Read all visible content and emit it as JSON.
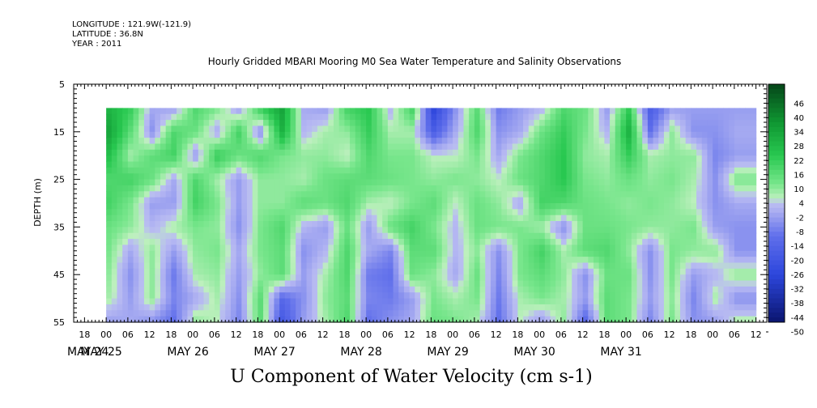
{
  "header": {
    "longitude": "LONGITUDE : 121.9W(-121.9)",
    "latitude": "LATITUDE : 36.8N",
    "year": "YEAR : 2011",
    "title": "Hourly Gridded MBARI Mooring M0 Sea Water Temperature and Salinity Observations"
  },
  "footer": {
    "variable_title": "U Component of Water Velocity (cm s-1)"
  },
  "colors": {
    "strong_positive": "#0b8a2a",
    "positive": "#4bd970",
    "weak_positive": "#a7f0b4",
    "weak_negative": "#b7b9f2",
    "negative": "#6a74e6",
    "strong_negative": "#0a1f8a"
  },
  "chart_data": {
    "type": "heatmap",
    "title": "Hourly Gridded MBARI Mooring M0 Sea Water Temperature and Salinity Observations",
    "xlabel": "",
    "ylabel": "DEPTH (m)",
    "value_label": "U Component of Water Velocity (cm s-1)",
    "y_range": [
      5,
      55
    ],
    "y_ticks": [
      5,
      15,
      25,
      35,
      45,
      55
    ],
    "x_range_hours": [
      -9,
      183
    ],
    "x_hour_labels": [
      "18",
      "00",
      "06",
      "12",
      "18",
      "00",
      "06",
      "12",
      "18",
      "00",
      "06",
      "12",
      "18",
      "00",
      "06",
      "12",
      "18",
      "00",
      "06",
      "12",
      "18",
      "00",
      "06",
      "12",
      "18",
      "00",
      "06",
      "12",
      "18",
      "00",
      "06",
      "12"
    ],
    "x_date_labels": [
      "MAY 24",
      "MAY 25",
      "MAY 26",
      "MAY 27",
      "MAY 28",
      "MAY 29",
      "MAY 30",
      "MAY 31"
    ],
    "color_scale": {
      "min": -50,
      "max": 50,
      "tick_labels": [
        46,
        40,
        34,
        28,
        22,
        16,
        10,
        4,
        -2,
        -8,
        -14,
        -20,
        -26,
        -32,
        -38,
        -44,
        -50
      ]
    },
    "data": {
      "depths": [
        10,
        15,
        20,
        25,
        30,
        35,
        40,
        45,
        50,
        55
      ],
      "times_hours": [
        0,
        6,
        12,
        18,
        24,
        30,
        36,
        42,
        48,
        54,
        60,
        66,
        72,
        78,
        84,
        90,
        96,
        102,
        108,
        114,
        120,
        126,
        132,
        138,
        144,
        150,
        156,
        162,
        168,
        174
      ],
      "values": [
        [
          25,
          18,
          -4,
          -6,
          14,
          8,
          -6,
          18,
          30,
          -4,
          -6,
          16,
          20,
          -2,
          16,
          -30,
          -8,
          12,
          -12,
          -6,
          -2,
          14,
          10,
          -6,
          18,
          -20,
          -6,
          -6,
          -6,
          -6
        ],
        [
          30,
          12,
          -8,
          14,
          10,
          -4,
          16,
          -8,
          26,
          -2,
          4,
          6,
          18,
          4,
          4,
          -20,
          -4,
          14,
          -8,
          -4,
          10,
          18,
          8,
          -2,
          26,
          -14,
          6,
          -8,
          -8,
          -4
        ],
        [
          22,
          4,
          12,
          16,
          -6,
          18,
          10,
          14,
          8,
          6,
          6,
          2,
          14,
          8,
          8,
          2,
          2,
          8,
          -4,
          8,
          14,
          20,
          6,
          4,
          18,
          4,
          6,
          6,
          -10,
          -6
        ],
        [
          14,
          16,
          10,
          -4,
          14,
          4,
          -6,
          6,
          6,
          4,
          10,
          12,
          12,
          10,
          8,
          6,
          8,
          6,
          2,
          10,
          14,
          20,
          8,
          6,
          10,
          6,
          8,
          4,
          -8,
          8
        ],
        [
          16,
          8,
          -6,
          -6,
          16,
          8,
          -6,
          6,
          6,
          12,
          10,
          14,
          4,
          2,
          8,
          12,
          2,
          10,
          6,
          -4,
          16,
          14,
          10,
          8,
          6,
          8,
          6,
          2,
          -8,
          -4
        ],
        [
          10,
          6,
          -2,
          4,
          8,
          6,
          -8,
          8,
          14,
          -2,
          -6,
          10,
          -6,
          10,
          16,
          8,
          -2,
          10,
          8,
          8,
          4,
          -8,
          10,
          10,
          8,
          6,
          6,
          8,
          -6,
          -8
        ],
        [
          8,
          -4,
          6,
          -6,
          6,
          8,
          -4,
          8,
          12,
          -8,
          -2,
          14,
          -4,
          -10,
          12,
          12,
          -2,
          6,
          -8,
          8,
          16,
          4,
          12,
          14,
          6,
          -8,
          8,
          6,
          6,
          -8
        ],
        [
          6,
          -8,
          6,
          -12,
          4,
          6,
          -6,
          6,
          12,
          -6,
          4,
          14,
          -12,
          -14,
          10,
          6,
          -4,
          10,
          -10,
          8,
          12,
          6,
          -8,
          10,
          10,
          -8,
          8,
          -6,
          -2,
          6
        ],
        [
          4,
          -6,
          6,
          -10,
          -4,
          4,
          -8,
          12,
          -16,
          -8,
          6,
          12,
          -10,
          -12,
          -6,
          8,
          4,
          8,
          -12,
          4,
          8,
          4,
          -6,
          12,
          8,
          -6,
          6,
          -10,
          4,
          -8
        ],
        [
          -6,
          -4,
          -8,
          -14,
          6,
          2,
          -10,
          12,
          -22,
          -6,
          4,
          14,
          -14,
          -8,
          -4,
          10,
          8,
          4,
          -14,
          2,
          -6,
          6,
          -16,
          12,
          8,
          -10,
          8,
          -8,
          -6,
          4
        ]
      ]
    }
  }
}
